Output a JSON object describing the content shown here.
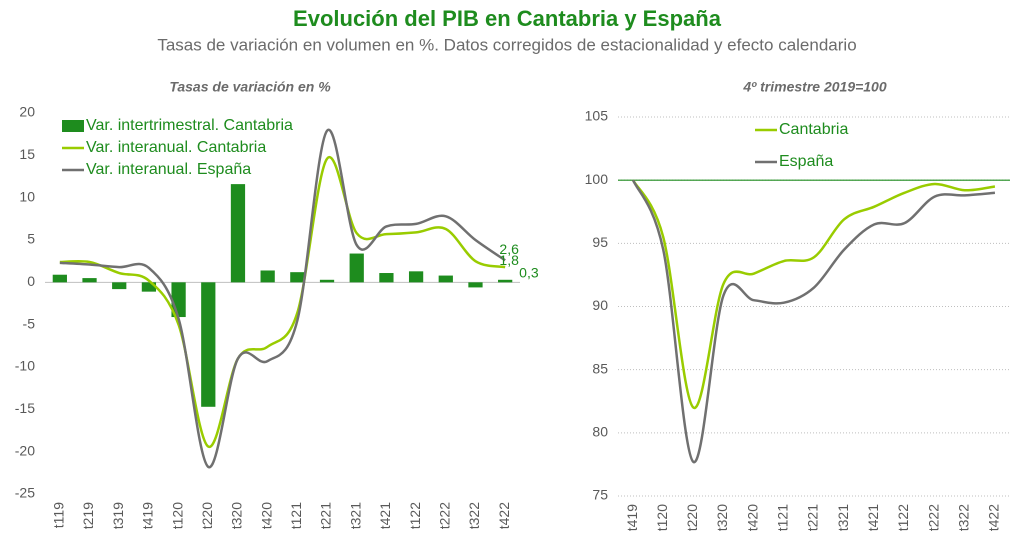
{
  "title": "Evolución del PIB en Cantabria y España",
  "subtitle": "Tasas de variación en volumen en %. Datos corregidos de estacionalidad y efecto calendario",
  "chart_data": [
    {
      "type": "combo",
      "title": "Tasas de variación en %",
      "categories": [
        "t119",
        "t219",
        "t319",
        "t419",
        "t120",
        "t220",
        "t320",
        "t420",
        "t121",
        "t221",
        "t321",
        "t421",
        "t122",
        "t222",
        "t322",
        "t422"
      ],
      "series": [
        {
          "name": "Var. intertrimestral. Cantabria",
          "type": "bar",
          "color": "#1e8c1e",
          "values": [
            0.9,
            0.5,
            -0.8,
            -1.1,
            -4.1,
            -14.7,
            11.6,
            1.4,
            1.2,
            0.3,
            3.4,
            1.1,
            1.3,
            0.8,
            -0.6,
            0.3
          ],
          "value_labels": [
            null,
            null,
            null,
            null,
            null,
            null,
            null,
            null,
            null,
            null,
            null,
            null,
            null,
            null,
            null,
            "0,3"
          ]
        },
        {
          "name": "Var. interanual. Cantabria",
          "type": "line",
          "color": "#99cc00",
          "values": [
            2.4,
            2.4,
            1.1,
            0.2,
            -5.0,
            -19.4,
            -9.0,
            -7.6,
            -3.6,
            14.6,
            5.8,
            5.7,
            5.9,
            6.3,
            2.5,
            1.8
          ],
          "value_labels": [
            null,
            null,
            null,
            null,
            null,
            null,
            null,
            null,
            null,
            null,
            null,
            null,
            null,
            null,
            null,
            "1,8"
          ]
        },
        {
          "name": "Var. interanual. España",
          "type": "line",
          "color": "#707070",
          "values": [
            2.3,
            2.1,
            1.8,
            1.7,
            -4.3,
            -21.8,
            -9.0,
            -9.3,
            -4.5,
            17.9,
            4.4,
            6.6,
            6.9,
            7.8,
            5.0,
            2.6
          ],
          "value_labels": [
            null,
            null,
            null,
            null,
            null,
            null,
            null,
            null,
            null,
            null,
            null,
            null,
            null,
            null,
            null,
            "2,6"
          ]
        }
      ],
      "ylim": [
        -25,
        20
      ],
      "yticks": [
        -25,
        -20,
        -15,
        -10,
        -5,
        0,
        5,
        10,
        15,
        20
      ],
      "grid": false,
      "legend": "upper left"
    },
    {
      "type": "line",
      "title": "4º trimestre 2019=100",
      "categories": [
        "t419",
        "t120",
        "t220",
        "t320",
        "t420",
        "t121",
        "t221",
        "t321",
        "t421",
        "t122",
        "t222",
        "t322",
        "t422"
      ],
      "series": [
        {
          "name": "Cantabria",
          "type": "line",
          "color": "#99cc00",
          "values": [
            100,
            95.5,
            82.0,
            91.8,
            92.6,
            93.6,
            93.9,
            96.9,
            97.9,
            99.0,
            99.7,
            99.2,
            99.5
          ]
        },
        {
          "name": "España",
          "type": "line",
          "color": "#707070",
          "values": [
            100,
            94.5,
            77.7,
            90.9,
            90.5,
            90.3,
            91.5,
            94.5,
            96.5,
            96.6,
            98.7,
            98.8,
            99.0
          ]
        }
      ],
      "ylim": [
        75,
        105
      ],
      "yticks": [
        75,
        80,
        85,
        90,
        95,
        100,
        105
      ],
      "grid": true,
      "reference_line": 100,
      "reference_color": "#1e8c1e",
      "legend": "upper center"
    }
  ]
}
